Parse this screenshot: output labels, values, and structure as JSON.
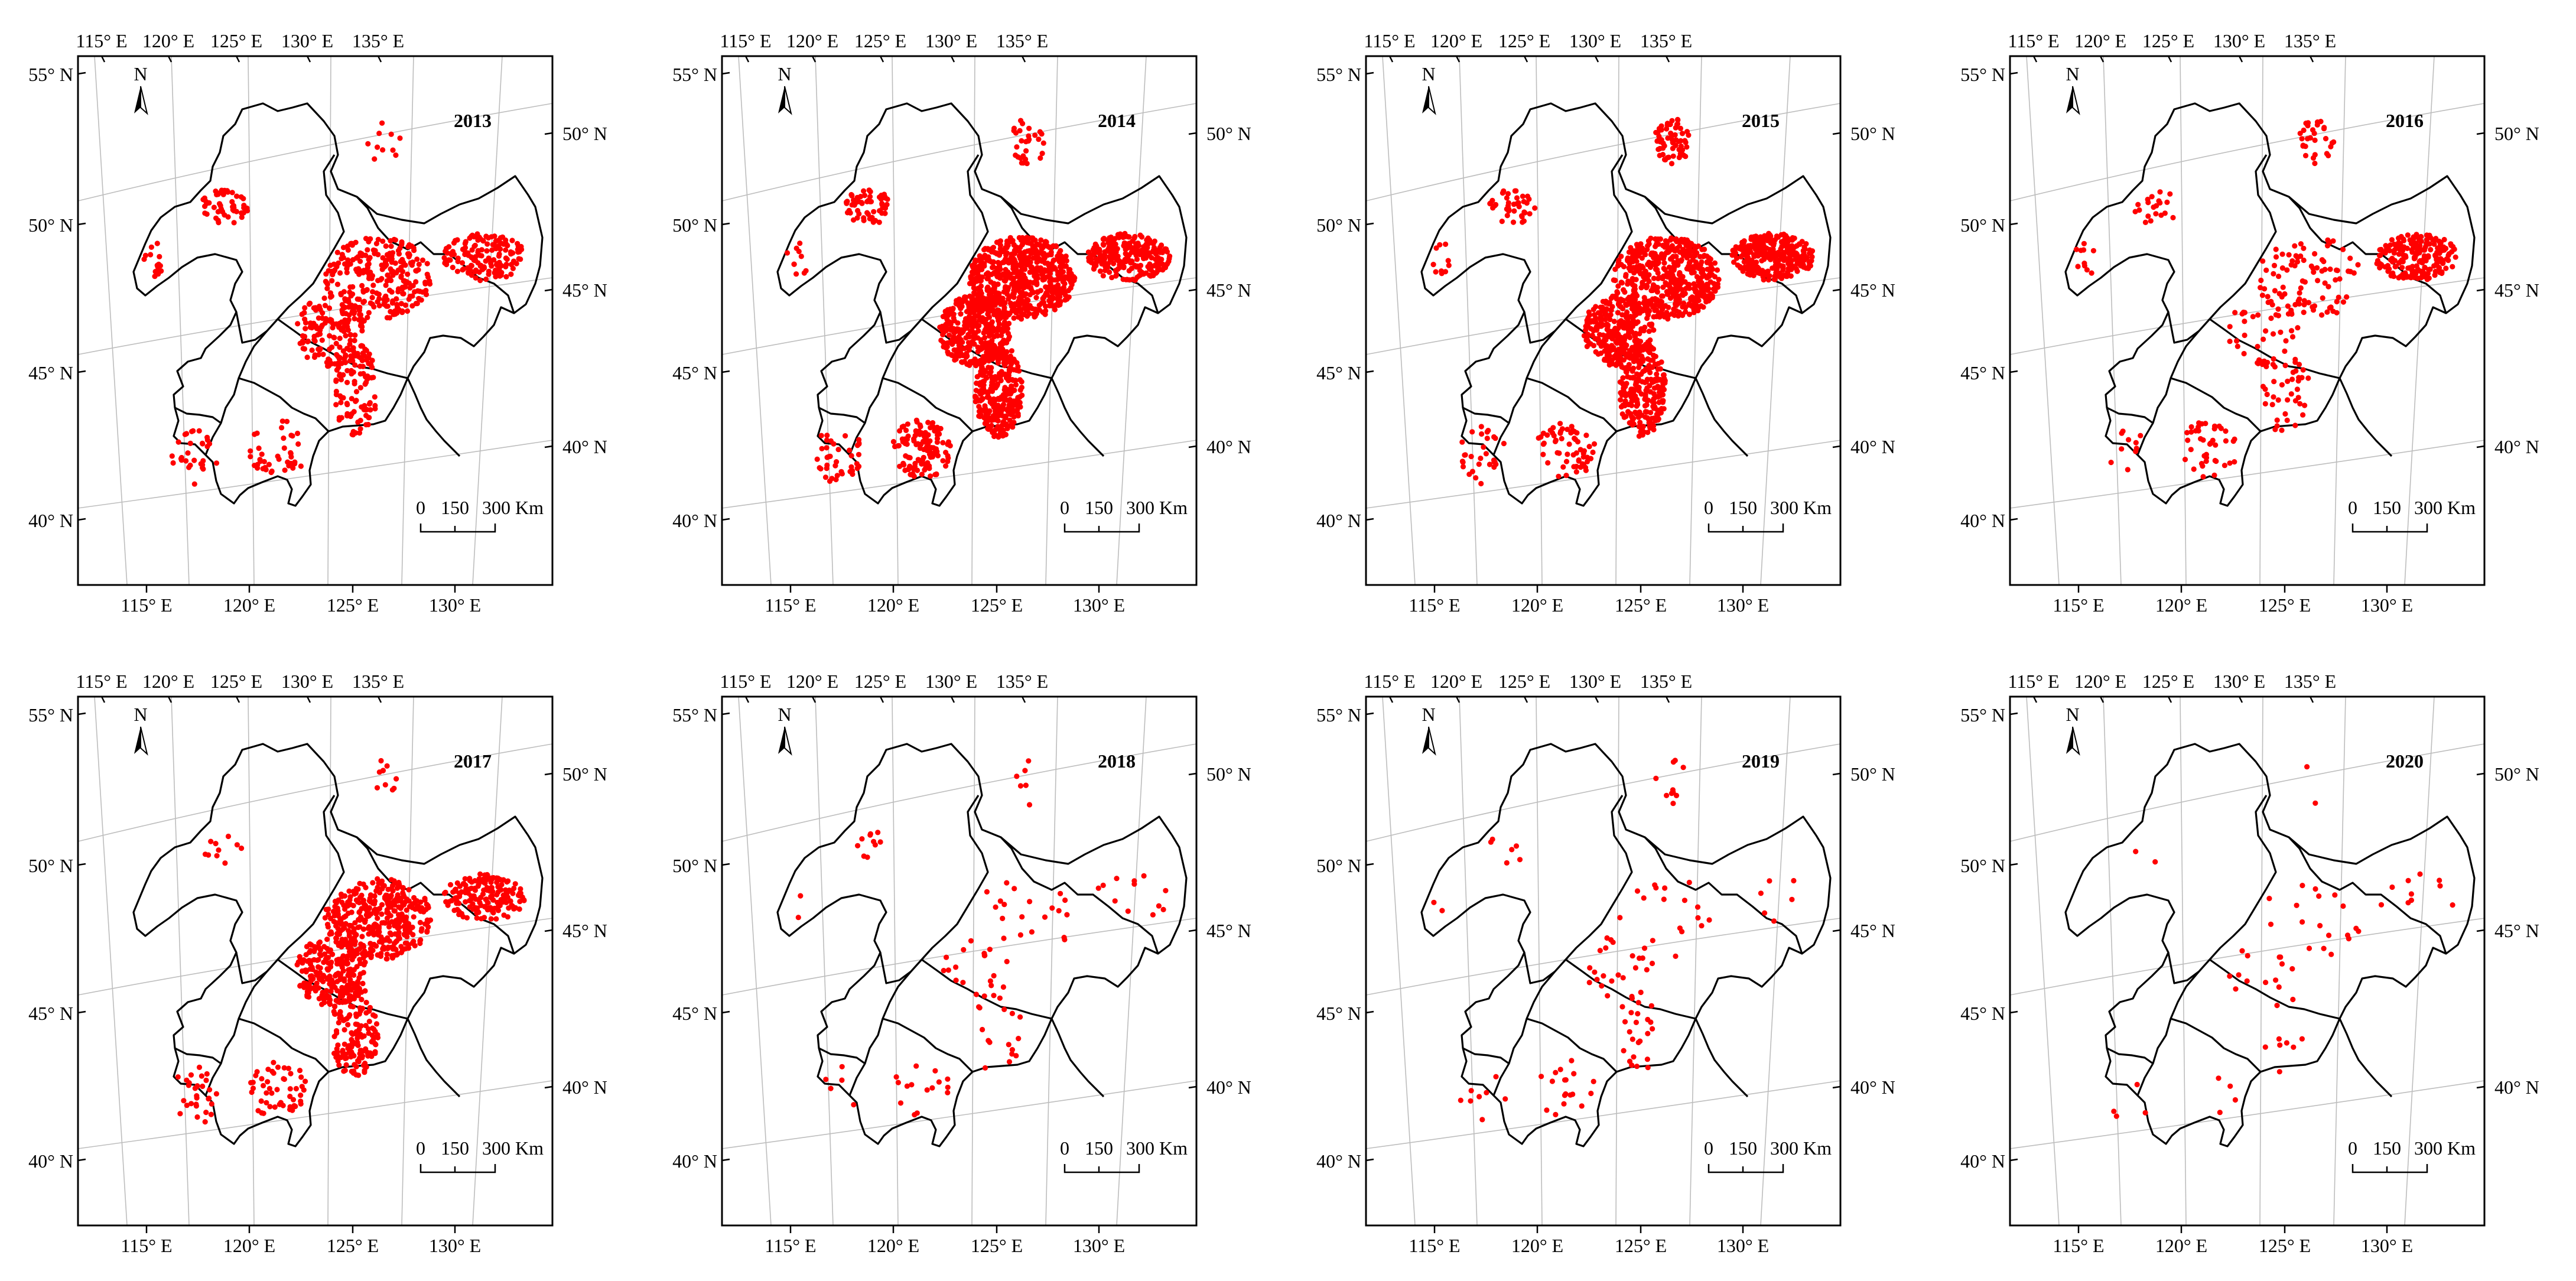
{
  "figure": {
    "top_lon_labels": [
      "115° E",
      "120° E",
      "125° E",
      "130° E",
      "135° E"
    ],
    "bottom_lon_labels": [
      "115° E",
      "120° E",
      "125° E",
      "130° E"
    ],
    "left_lat_labels": [
      "55° N",
      "50° N",
      "45° N",
      "40° N"
    ],
    "right_lat_labels": [
      "50° N",
      "45° N",
      "40° N"
    ],
    "north_arrow_label": "N",
    "scale_bar_labels": [
      "0",
      "150",
      "300 Km"
    ],
    "point_color": "#ff0000",
    "panels": [
      {
        "year": "2013",
        "density": "high"
      },
      {
        "year": "2014",
        "density": "very high"
      },
      {
        "year": "2015",
        "density": "very high"
      },
      {
        "year": "2016",
        "density": "medium"
      },
      {
        "year": "2017",
        "density": "high"
      },
      {
        "year": "2018",
        "density": "low"
      },
      {
        "year": "2019",
        "density": "low"
      },
      {
        "year": "2020",
        "density": "very low"
      }
    ]
  }
}
